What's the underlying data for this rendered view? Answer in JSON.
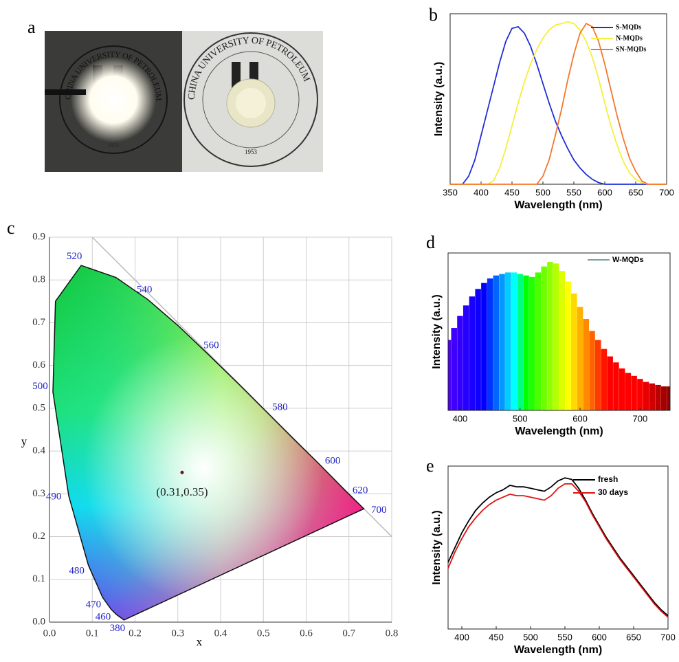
{
  "panel_labels": [
    "a",
    "b",
    "c",
    "d",
    "e"
  ],
  "photo": {
    "seal_text": "CHINA UNIVERSITY OF PETROLEUM",
    "year": "1953"
  },
  "chart_data": [
    {
      "type": "line",
      "xlabel": "Wavelength (nm)",
      "ylabel": "Intensity (a.u.)",
      "x": [
        350,
        360,
        370,
        380,
        390,
        400,
        410,
        420,
        430,
        440,
        450,
        460,
        470,
        480,
        490,
        500,
        510,
        520,
        530,
        540,
        550,
        560,
        570,
        580,
        590,
        600,
        610,
        620,
        630,
        640,
        650,
        660,
        670,
        680,
        690,
        700
      ],
      "xlim": [
        350,
        700
      ],
      "xticks": [
        350,
        400,
        450,
        500,
        550,
        600,
        650,
        700
      ],
      "ylim": [
        0,
        1.05
      ],
      "legend": "upper right",
      "series": [
        {
          "name": "S-MQDs",
          "color": "#1f2fd6",
          "values": [
            0,
            0,
            0,
            0.05,
            0.15,
            0.3,
            0.45,
            0.6,
            0.75,
            0.88,
            0.96,
            0.97,
            0.93,
            0.85,
            0.74,
            0.62,
            0.5,
            0.39,
            0.3,
            0.22,
            0.15,
            0.1,
            0.06,
            0.03,
            0.01,
            0,
            0,
            0,
            0,
            0,
            0,
            0,
            0,
            0,
            0,
            0
          ]
        },
        {
          "name": "N-MQDs",
          "color": "#f4f03a",
          "values": [
            0,
            0,
            0,
            0,
            0,
            0,
            0,
            0.02,
            0.1,
            0.22,
            0.36,
            0.5,
            0.63,
            0.74,
            0.83,
            0.9,
            0.95,
            0.98,
            0.99,
            1.0,
            0.99,
            0.95,
            0.88,
            0.78,
            0.65,
            0.5,
            0.36,
            0.24,
            0.14,
            0.07,
            0.03,
            0.01,
            0,
            0,
            0,
            0
          ]
        },
        {
          "name": "SN-MQDs",
          "color": "#f5772a",
          "values": [
            0,
            0,
            0,
            0,
            0,
            0,
            0,
            0,
            0,
            0,
            0,
            0,
            0,
            0,
            0,
            0.05,
            0.15,
            0.3,
            0.46,
            0.64,
            0.8,
            0.93,
            0.99,
            0.97,
            0.88,
            0.74,
            0.58,
            0.42,
            0.28,
            0.16,
            0.08,
            0.02,
            0,
            0,
            0,
            0
          ]
        }
      ]
    },
    {
      "type": "chromaticity",
      "xlabel": "x",
      "ylabel": "y",
      "xlim": [
        0,
        0.8
      ],
      "ylim": [
        0,
        0.9
      ],
      "grid": true,
      "xticks": [
        {
          "value": 0,
          "label": "0.0"
        },
        0.1,
        0.2,
        0.3,
        0.4,
        0.5,
        0.6,
        0.7,
        0.8
      ],
      "yticks": [
        {
          "value": 0,
          "label": "0.0"
        },
        0.1,
        0.2,
        0.3,
        0.4,
        0.5,
        0.6,
        0.7,
        0.8,
        0.9
      ],
      "locus": {
        "x": [
          0.1741,
          0.1566,
          0.144,
          0.124,
          0.091,
          0.045,
          0.008,
          0.014,
          0.074,
          0.155,
          0.23,
          0.302,
          0.373,
          0.444,
          0.512,
          0.575,
          0.627,
          0.691,
          0.735
        ],
        "y": [
          0.005,
          0.0177,
          0.03,
          0.058,
          0.133,
          0.295,
          0.538,
          0.75,
          0.834,
          0.806,
          0.754,
          0.692,
          0.624,
          0.555,
          0.487,
          0.424,
          0.373,
          0.308,
          0.265
        ],
        "labels": [
          "380",
          null,
          "460",
          "470",
          "480",
          "490",
          "500",
          null,
          "520",
          null,
          "540",
          null,
          "560",
          null,
          "580",
          null,
          "600",
          "620",
          "700"
        ]
      },
      "point": {
        "x": 0.31,
        "y": 0.35,
        "label": "(0.31,0.35)"
      }
    },
    {
      "type": "bar",
      "xlabel": "Wavelength (nm)",
      "ylabel": "Intensity (a.u.)",
      "x": [
        380,
        390,
        400,
        410,
        420,
        430,
        440,
        450,
        460,
        470,
        480,
        490,
        500,
        510,
        520,
        530,
        540,
        550,
        560,
        570,
        580,
        590,
        600,
        610,
        620,
        630,
        640,
        650,
        660,
        670,
        680,
        690,
        700,
        710,
        720,
        730,
        740,
        750
      ],
      "xlim": [
        380,
        750
      ],
      "xticks": [
        400,
        500,
        600,
        700
      ],
      "ylim": [
        0,
        1.05
      ],
      "legend": "upper right",
      "series": [
        {
          "name": "W-MQDs",
          "color": "#7f9f9f",
          "values": [
            0.47,
            0.55,
            0.63,
            0.7,
            0.76,
            0.81,
            0.85,
            0.88,
            0.9,
            0.91,
            0.92,
            0.92,
            0.91,
            0.9,
            0.89,
            0.92,
            0.96,
            0.99,
            0.98,
            0.93,
            0.86,
            0.78,
            0.69,
            0.61,
            0.53,
            0.47,
            0.41,
            0.36,
            0.32,
            0.28,
            0.25,
            0.23,
            0.21,
            0.19,
            0.18,
            0.17,
            0.16,
            0.16
          ]
        }
      ]
    },
    {
      "type": "line",
      "xlabel": "Wavelength (nm)",
      "ylabel": "Intensity (a.u.)",
      "x": [
        380,
        390,
        400,
        410,
        420,
        430,
        440,
        450,
        460,
        470,
        480,
        490,
        500,
        510,
        520,
        530,
        540,
        550,
        560,
        570,
        580,
        590,
        600,
        610,
        620,
        630,
        640,
        650,
        660,
        670,
        680,
        690,
        700
      ],
      "xlim": [
        380,
        700
      ],
      "xticks": [
        400,
        450,
        500,
        550,
        600,
        650,
        700
      ],
      "ylim": [
        0,
        1.1
      ],
      "legend": "upper right",
      "series": [
        {
          "name": "fresh",
          "color": "#000000",
          "values": [
            0.45,
            0.55,
            0.65,
            0.73,
            0.8,
            0.85,
            0.89,
            0.92,
            0.94,
            0.97,
            0.96,
            0.96,
            0.95,
            0.94,
            0.93,
            0.96,
            1.0,
            1.02,
            1.01,
            0.95,
            0.87,
            0.78,
            0.7,
            0.62,
            0.55,
            0.48,
            0.42,
            0.36,
            0.3,
            0.24,
            0.18,
            0.13,
            0.09
          ]
        },
        {
          "name": "30 days",
          "color": "#e01010",
          "values": [
            0.41,
            0.52,
            0.61,
            0.69,
            0.75,
            0.8,
            0.84,
            0.87,
            0.89,
            0.91,
            0.9,
            0.9,
            0.89,
            0.88,
            0.87,
            0.9,
            0.95,
            0.98,
            0.98,
            0.93,
            0.86,
            0.77,
            0.69,
            0.61,
            0.54,
            0.47,
            0.41,
            0.35,
            0.29,
            0.23,
            0.17,
            0.12,
            0.08
          ]
        }
      ]
    }
  ]
}
